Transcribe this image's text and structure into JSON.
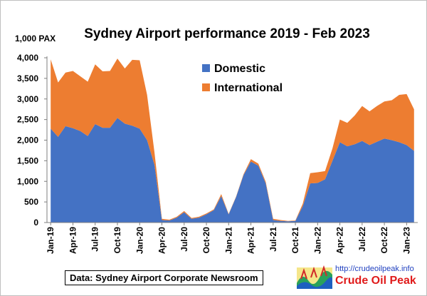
{
  "chart_data": {
    "type": "area",
    "stacked": true,
    "title": "Sydney Airport performance  2019 - Feb 2023",
    "ylabel": "1,000 PAX",
    "xlabel": "",
    "ylim": [
      0,
      4000
    ],
    "yticks": [
      "0",
      "500",
      "1,000",
      "1,500",
      "2,000",
      "2,500",
      "3,000",
      "3,500",
      "4,000"
    ],
    "x": [
      "Jan-19",
      "Feb-19",
      "Mar-19",
      "Apr-19",
      "May-19",
      "Jun-19",
      "Jul-19",
      "Aug-19",
      "Sep-19",
      "Oct-19",
      "Nov-19",
      "Dec-19",
      "Jan-20",
      "Feb-20",
      "Mar-20",
      "Apr-20",
      "May-20",
      "Jun-20",
      "Jul-20",
      "Aug-20",
      "Sep-20",
      "Oct-20",
      "Nov-20",
      "Dec-20",
      "Jan-21",
      "Feb-21",
      "Mar-21",
      "Apr-21",
      "May-21",
      "Jun-21",
      "Jul-21",
      "Aug-21",
      "Sep-21",
      "Oct-21",
      "Nov-21",
      "Dec-21",
      "Jan-22",
      "Feb-22",
      "Mar-22",
      "Apr-22",
      "May-22",
      "Jun-22",
      "Jul-22",
      "Aug-22",
      "Sep-22",
      "Oct-22",
      "Nov-22",
      "Dec-22",
      "Jan-23",
      "Feb-23"
    ],
    "xtick_labels": [
      "Jan-19",
      "Apr-19",
      "Jul-19",
      "Oct-19",
      "Jan-20",
      "Apr-20",
      "Jul-20",
      "Oct-20",
      "Jan-21",
      "Apr-21",
      "Jul-21",
      "Oct-21",
      "Jan-22",
      "Apr-22",
      "Jul-22",
      "Oct-22",
      "Jan-23"
    ],
    "series": [
      {
        "name": "Domestic",
        "color": "#4472c4",
        "values": [
          2280,
          2080,
          2340,
          2290,
          2220,
          2100,
          2390,
          2300,
          2300,
          2540,
          2400,
          2350,
          2280,
          2000,
          1400,
          60,
          50,
          120,
          250,
          90,
          120,
          200,
          300,
          640,
          200,
          620,
          1150,
          1480,
          1380,
          950,
          60,
          40,
          30,
          40,
          400,
          950,
          960,
          1050,
          1500,
          1950,
          1850,
          1900,
          1980,
          1880,
          1960,
          2040,
          2000,
          1950,
          1880,
          1740
        ]
      },
      {
        "name": "International",
        "color": "#ed7d31",
        "values": [
          1680,
          1320,
          1300,
          1390,
          1330,
          1320,
          1450,
          1370,
          1380,
          1440,
          1340,
          1600,
          1660,
          1100,
          300,
          30,
          20,
          20,
          30,
          20,
          20,
          20,
          20,
          50,
          10,
          10,
          20,
          60,
          50,
          40,
          30,
          20,
          10,
          10,
          60,
          250,
          260,
          200,
          300,
          550,
          570,
          700,
          850,
          820,
          870,
          900,
          970,
          1150,
          1240,
          1010
        ]
      }
    ],
    "legend_position": "top-right",
    "grid": false,
    "source_note": "Data: Sydney Airport Corporate Newsroom"
  },
  "logo": {
    "url": "http://crudeoilpeak.info",
    "name": "Crude Oil Peak"
  }
}
